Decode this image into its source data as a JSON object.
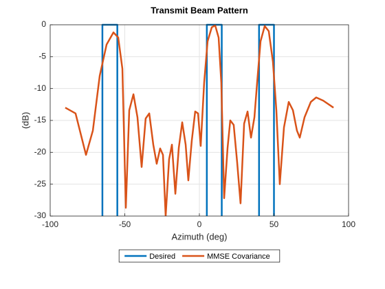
{
  "chart_data": {
    "type": "line",
    "title": "Transmit Beam Pattern",
    "xlabel": "Azimuth (deg)",
    "ylabel": "(dB)",
    "xlim": [
      -100,
      100
    ],
    "xticks": [
      -100,
      -50,
      0,
      50,
      100
    ],
    "ylim": [
      -30,
      0
    ],
    "yticks": [
      -30,
      -25,
      -20,
      -15,
      -10,
      -5,
      0
    ],
    "grid": true,
    "legend": "bottom",
    "series": [
      {
        "name": "Desired",
        "color": "#0072bd",
        "x": [
          -65,
          -65,
          -55,
          -55,
          null,
          5,
          5,
          15,
          15,
          null,
          40,
          40,
          50,
          50
        ],
        "values": [
          -30,
          0,
          0,
          -30,
          null,
          -30,
          0,
          0,
          -30,
          null,
          -30,
          0,
          0,
          -30
        ]
      },
      {
        "name": "MMSE Covariance",
        "color": "#d95319",
        "x": [
          -89.9,
          -83,
          -76,
          -71.4,
          -66.8,
          -62.2,
          -57.6,
          -54.4,
          -51.6,
          -49.3,
          -47,
          -44.2,
          -41.5,
          -38.7,
          -36,
          -33.6,
          -30.9,
          -28.6,
          -26.3,
          -24.4,
          -22.6,
          -20.3,
          -18.4,
          -16.1,
          -13.8,
          -11.5,
          -9.2,
          -7.4,
          -5.1,
          -2.8,
          -0.9,
          0.9,
          3.2,
          5.5,
          8.3,
          10.6,
          12.9,
          14.7,
          16.6,
          18.9,
          20.7,
          23,
          25.3,
          27.6,
          30,
          32.3,
          34.6,
          36.9,
          38.7,
          41,
          43.8,
          46.5,
          49.3,
          51.6,
          53.9,
          56.7,
          59.9,
          62.7,
          65.4,
          67.3,
          70.5,
          74.7,
          78.3,
          83,
          89.9
        ],
        "values": [
          -13,
          -13.9,
          -20.4,
          -16.6,
          -8,
          -3.1,
          -1.2,
          -2,
          -6.9,
          -28.7,
          -13.4,
          -10.9,
          -14.5,
          -22.3,
          -14.7,
          -13.9,
          -18.8,
          -21.8,
          -19.4,
          -20.4,
          -30,
          -21.1,
          -18.8,
          -26.5,
          -19.3,
          -15.3,
          -18.8,
          -24.4,
          -18.2,
          -13.6,
          -13.9,
          -19,
          -9.1,
          -2.6,
          -0.4,
          -0.1,
          -2,
          -9.1,
          -27.2,
          -19.3,
          -15,
          -15.7,
          -21.5,
          -28,
          -15.5,
          -13.6,
          -17.7,
          -14.5,
          -9.1,
          -2.6,
          -0.2,
          -1,
          -5.8,
          -13.4,
          -25,
          -16.1,
          -12.1,
          -13.4,
          -16.6,
          -17.7,
          -14.5,
          -12.1,
          -11.4,
          -11.9,
          -13
        ]
      }
    ]
  }
}
